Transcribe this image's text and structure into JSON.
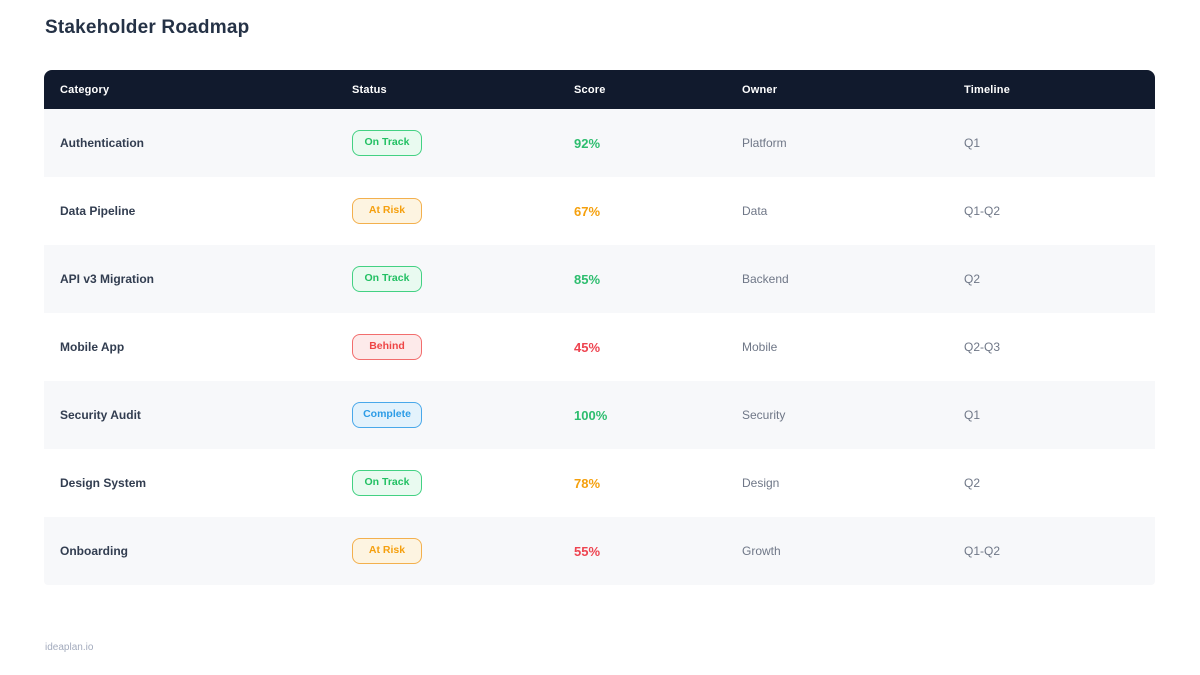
{
  "page": {
    "title": "Stakeholder Roadmap",
    "footer": "ideaplan.io"
  },
  "table": {
    "columns": [
      "Category",
      "Status",
      "Score",
      "Owner",
      "Timeline"
    ],
    "rows": [
      {
        "category": "Authentication",
        "status": "On Track",
        "status_type": "on-track",
        "score": "92%",
        "score_color": "green",
        "owner": "Platform",
        "timeline": "Q1"
      },
      {
        "category": "Data Pipeline",
        "status": "At Risk",
        "status_type": "at-risk",
        "score": "67%",
        "score_color": "orange",
        "owner": "Data",
        "timeline": "Q1-Q2"
      },
      {
        "category": "API v3 Migration",
        "status": "On Track",
        "status_type": "on-track",
        "score": "85%",
        "score_color": "green",
        "owner": "Backend",
        "timeline": "Q2"
      },
      {
        "category": "Mobile App",
        "status": "Behind",
        "status_type": "behind",
        "score": "45%",
        "score_color": "red",
        "owner": "Mobile",
        "timeline": "Q2-Q3"
      },
      {
        "category": "Security Audit",
        "status": "Complete",
        "status_type": "complete",
        "score": "100%",
        "score_color": "green",
        "owner": "Security",
        "timeline": "Q1"
      },
      {
        "category": "Design System",
        "status": "On Track",
        "status_type": "on-track",
        "score": "78%",
        "score_color": "orange",
        "owner": "Design",
        "timeline": "Q2"
      },
      {
        "category": "Onboarding",
        "status": "At Risk",
        "status_type": "at-risk",
        "score": "55%",
        "score_color": "red",
        "owner": "Growth",
        "timeline": "Q1-Q2"
      }
    ]
  },
  "colors": {
    "header_bg": "#111a2d",
    "row_alt_bg": "#f7f8fa",
    "title_text": "#253246",
    "muted_text": "#6f7787",
    "status_green": "#22c063",
    "status_orange": "#f59f0d",
    "status_red": "#ee4545",
    "status_blue": "#2d9ce6",
    "score_green": "#2dbd6e",
    "score_orange": "#f5a00d",
    "score_red": "#ee4450"
  }
}
